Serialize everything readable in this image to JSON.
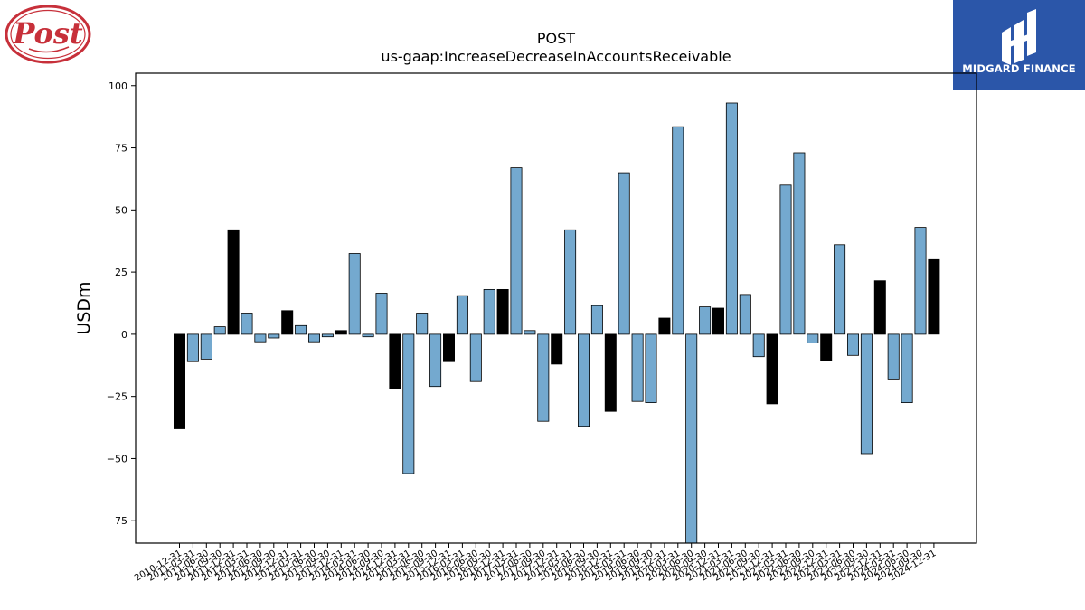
{
  "logos": {
    "left_wordmark": "Post",
    "right_brand": "MIDGARD FINANCE"
  },
  "chart_data": {
    "type": "bar",
    "title": "POST",
    "subtitle": "us-gaap:IncreaseDecreaseInAccountsReceivable",
    "xlabel": "",
    "ylabel": "USDm",
    "ylim": [
      -84,
      105
    ],
    "yticks": [
      -75,
      -50,
      -25,
      0,
      25,
      50,
      75,
      100
    ],
    "grid": false,
    "legend": "none",
    "colors": {
      "quarterly": "#74a9cf",
      "annual": "#000000",
      "edge": "#000000"
    },
    "categories": [
      "2010-12-31",
      "2011-03-31",
      "2011-06-30",
      "2011-09-30",
      "2011-12-31",
      "2012-03-31",
      "2012-06-30",
      "2012-09-30",
      "2012-12-31",
      "2013-03-31",
      "2013-06-30",
      "2013-09-30",
      "2013-12-31",
      "2014-03-31",
      "2014-06-30",
      "2014-09-30",
      "2014-12-31",
      "2015-03-31",
      "2015-06-30",
      "2015-09-30",
      "2015-12-31",
      "2016-03-31",
      "2016-06-30",
      "2016-09-30",
      "2016-12-31",
      "2017-03-31",
      "2017-06-30",
      "2017-09-30",
      "2017-12-31",
      "2018-03-31",
      "2018-06-30",
      "2018-09-30",
      "2018-12-31",
      "2019-03-31",
      "2019-06-30",
      "2019-09-30",
      "2019-12-31",
      "2020-03-31",
      "2020-06-30",
      "2020-09-30",
      "2020-12-31",
      "2021-03-31",
      "2021-06-30",
      "2021-09-30",
      "2021-12-31",
      "2022-03-31",
      "2022-06-30",
      "2022-09-30",
      "2022-12-31",
      "2023-03-31",
      "2023-06-30",
      "2023-09-30",
      "2023-12-31",
      "2024-03-31",
      "2024-06-30",
      "2024-09-30",
      "2024-12-31"
    ],
    "values": [
      -38,
      -11,
      -10,
      3,
      42,
      8.5,
      -3,
      -1.5,
      9.5,
      3.5,
      -3,
      -1,
      1.5,
      32.5,
      -1,
      16.5,
      -22,
      -56,
      8.5,
      -21,
      -11,
      15.5,
      -19,
      18,
      18,
      67,
      1.5,
      -35,
      -12,
      42,
      -37,
      11.5,
      -31,
      65,
      -27,
      -27.5,
      6.5,
      83.5,
      -84,
      11,
      10.5,
      93,
      16,
      -9,
      -28,
      60,
      73,
      -3.5,
      -10.5,
      36,
      -8.5,
      -48,
      21.5,
      -18,
      -27.5,
      43,
      30
    ],
    "annual": [
      true,
      false,
      false,
      false,
      true,
      false,
      false,
      false,
      true,
      false,
      false,
      false,
      true,
      false,
      false,
      false,
      true,
      false,
      false,
      false,
      true,
      false,
      false,
      false,
      true,
      false,
      false,
      false,
      true,
      false,
      false,
      false,
      true,
      false,
      false,
      false,
      true,
      false,
      false,
      false,
      true,
      false,
      false,
      false,
      true,
      false,
      false,
      false,
      true,
      false,
      false,
      false,
      true,
      false,
      false,
      false,
      true
    ]
  }
}
